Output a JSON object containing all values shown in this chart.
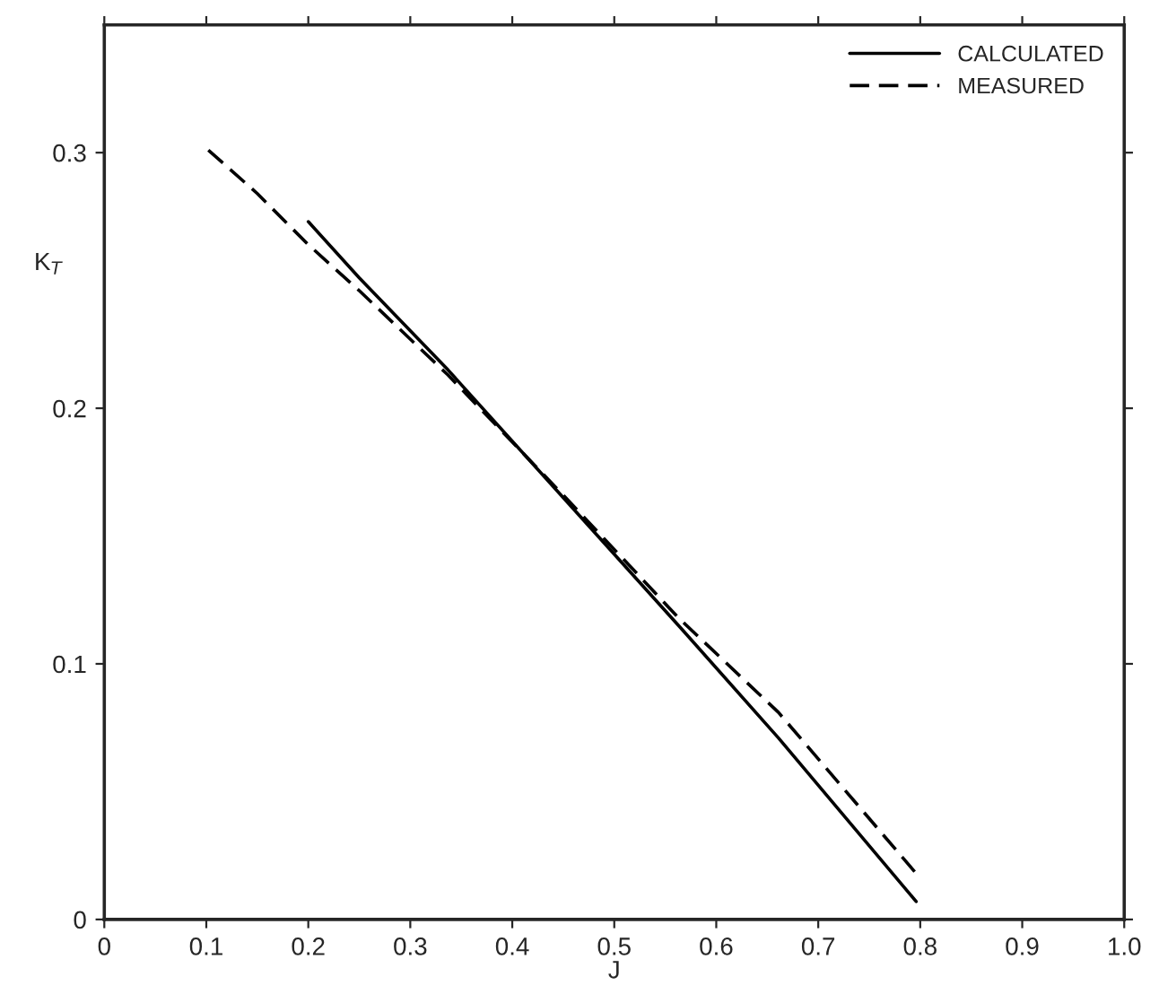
{
  "chart_data": {
    "type": "line",
    "xlabel": "J",
    "ylabel": "K$_{T}$",
    "xlim": [
      0,
      1.0
    ],
    "ylim": [
      0,
      0.35
    ],
    "xticks": [
      0,
      0.1,
      0.2,
      0.3,
      0.4,
      0.5,
      0.6,
      0.7,
      0.8,
      0.9,
      {
        "value": 1.0,
        "label": "1.0"
      }
    ],
    "yticks": [
      0,
      0.1,
      0.2,
      0.3
    ],
    "grid": false,
    "legend": "top right",
    "series": [
      {
        "name": "CALCULATED",
        "color": "#000000",
        "line_style": "solid",
        "x": [
          0.2,
          0.25,
          0.337,
          0.45,
          0.563,
          0.661,
          0.796
        ],
        "values": [
          0.273,
          0.251,
          0.215,
          0.165,
          0.115,
          0.071,
          0.007
        ]
      },
      {
        "name": "MEASURED",
        "color": "#000000",
        "line_style": "dashed",
        "x": [
          0.102,
          0.15,
          0.2,
          0.25,
          0.337,
          0.45,
          0.563,
          0.661,
          0.796
        ],
        "values": [
          0.301,
          0.284,
          0.264,
          0.246,
          0.213,
          0.166,
          0.118,
          0.081,
          0.018
        ]
      }
    ]
  }
}
